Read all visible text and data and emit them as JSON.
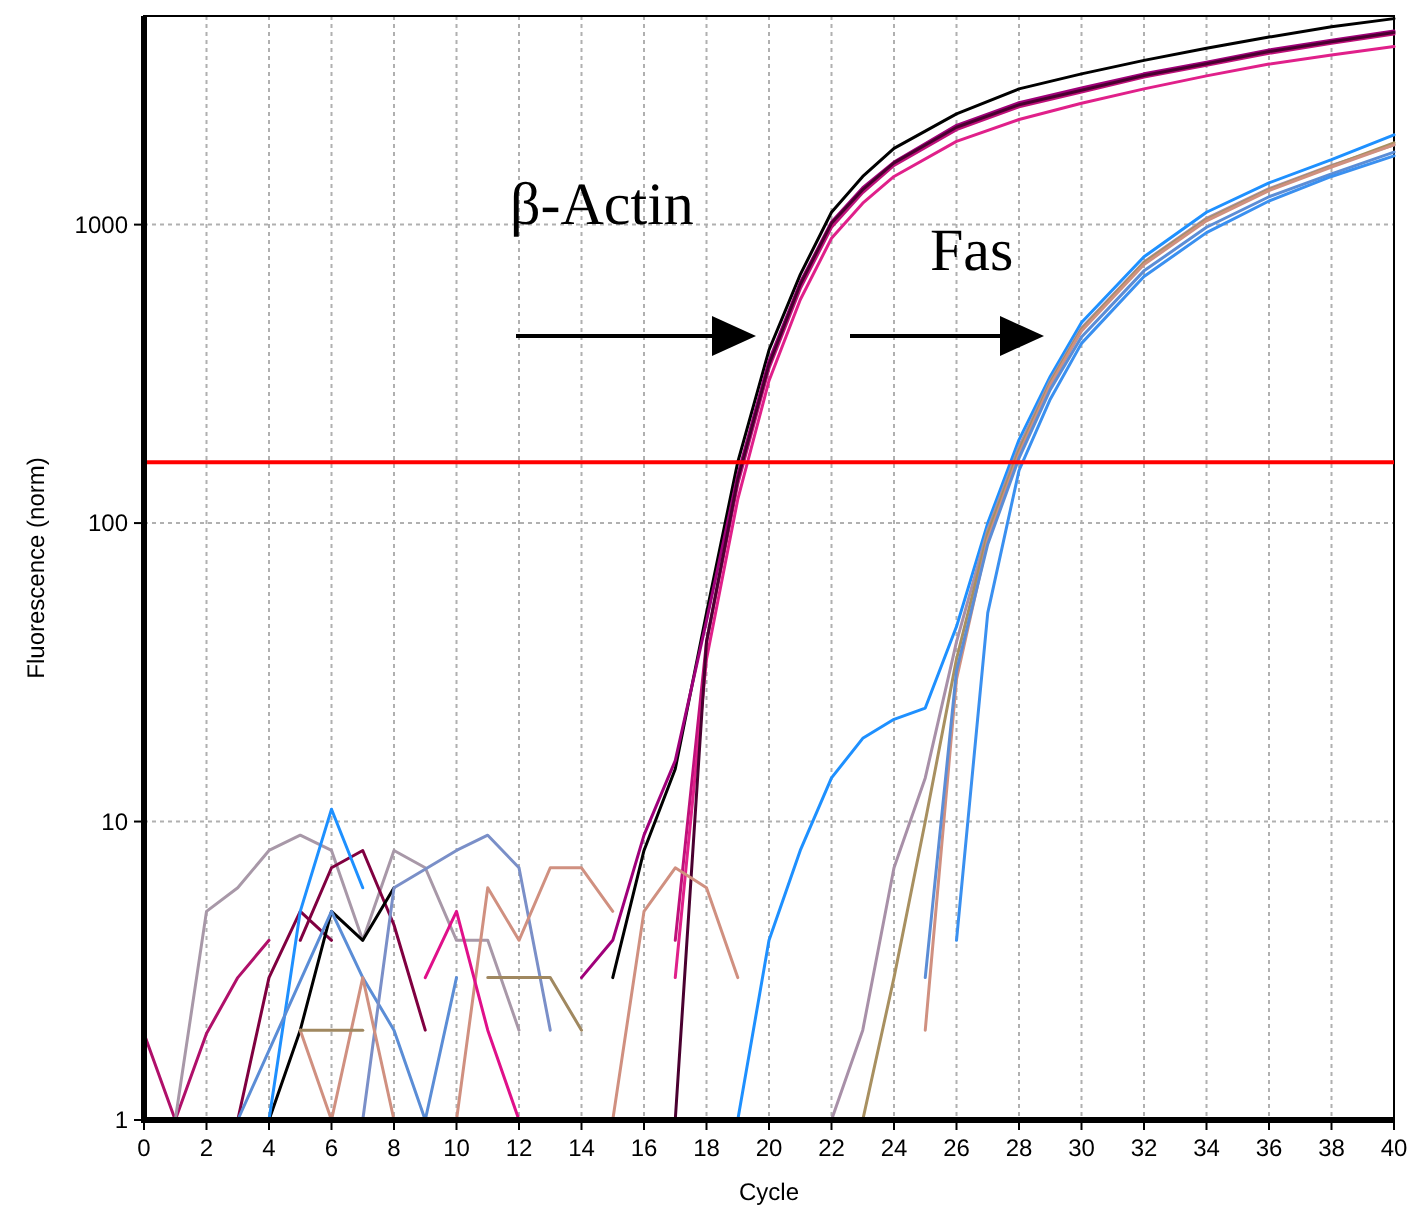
{
  "chart_data": {
    "type": "line",
    "xlabel": "Cycle",
    "ylabel": "Fluorescence (norm)",
    "annotations": [
      "β-Actin",
      "Fas"
    ],
    "log": "y",
    "grid": true,
    "marker": "none",
    "line_style": "solid",
    "xlim": [
      0,
      40
    ],
    "xticks": [
      0,
      2,
      4,
      6,
      8,
      10,
      12,
      14,
      16,
      18,
      20,
      22,
      24,
      26,
      28,
      30,
      32,
      34,
      36,
      38,
      40
    ],
    "ylim": [
      1,
      5000
    ],
    "yticks": [
      1,
      10,
      100,
      1000
    ],
    "ref_lines": [
      {
        "axis": "y",
        "value": 160,
        "color": "#ff0000"
      }
    ],
    "series": [
      {
        "color": "#000000",
        "x": [
          15,
          16,
          17,
          18,
          19,
          20,
          21,
          22,
          23,
          24,
          26,
          28,
          30,
          32,
          34,
          36,
          38,
          40
        ],
        "values": [
          3,
          8,
          15,
          50,
          160,
          380,
          680,
          1100,
          1450,
          1800,
          2350,
          2850,
          3200,
          3550,
          3900,
          4250,
          4600,
          4900
        ]
      },
      {
        "color": "#a0007a",
        "x": [
          14,
          15,
          16,
          17,
          18,
          19,
          20,
          21,
          22,
          23,
          24,
          26,
          28,
          30,
          32,
          34,
          36,
          38,
          40
        ],
        "values": [
          3,
          4,
          9,
          16,
          47,
          145,
          350,
          640,
          1020,
          1330,
          1620,
          2150,
          2560,
          2870,
          3200,
          3500,
          3850,
          4150,
          4450
        ]
      },
      {
        "color": "#c0107a",
        "x": [
          17,
          18,
          19,
          20,
          21,
          22,
          23,
          24,
          26,
          28,
          30,
          32,
          34,
          36,
          38,
          40
        ],
        "values": [
          4,
          40,
          135,
          330,
          610,
          980,
          1280,
          1580,
          2080,
          2480,
          2780,
          3120,
          3420,
          3750,
          4050,
          4350
        ]
      },
      {
        "color": "#e0208a",
        "x": [
          17,
          18,
          19,
          20,
          21,
          22,
          23,
          24,
          26,
          28,
          30,
          32,
          34,
          36,
          38,
          40
        ],
        "values": [
          3,
          35,
          120,
          300,
          560,
          900,
          1180,
          1450,
          1900,
          2250,
          2550,
          2850,
          3150,
          3450,
          3700,
          3950
        ]
      },
      {
        "color": "#4a0030",
        "x": [
          17,
          18,
          19,
          20,
          21,
          22,
          23,
          24,
          26,
          28,
          30,
          32,
          34,
          36,
          38,
          40
        ],
        "values": [
          1,
          40,
          140,
          340,
          630,
          1010,
          1310,
          1610,
          2120,
          2520,
          2820,
          3160,
          3460,
          3800,
          4100,
          4400
        ]
      },
      {
        "color": "#1e90ff",
        "x": [
          19,
          20,
          21,
          22,
          23,
          24,
          25,
          26,
          27,
          28,
          29,
          30,
          32,
          34,
          36,
          38,
          40
        ],
        "values": [
          1,
          4,
          8,
          14,
          19,
          22,
          24,
          45,
          100,
          190,
          310,
          470,
          780,
          1100,
          1380,
          1650,
          2000
        ]
      },
      {
        "color": "#a890a8",
        "x": [
          22,
          23,
          24,
          25,
          26,
          27,
          28,
          29,
          30,
          32,
          34,
          36,
          38,
          40
        ],
        "values": [
          1,
          2,
          7,
          14,
          40,
          95,
          180,
          300,
          450,
          750,
          1050,
          1320,
          1580,
          1850
        ]
      },
      {
        "color": "#a89060",
        "x": [
          23,
          24,
          25,
          26,
          27,
          28,
          29,
          30,
          32,
          34,
          36,
          38,
          40
        ],
        "values": [
          1,
          3,
          10,
          35,
          92,
          175,
          295,
          445,
          745,
          1040,
          1310,
          1570,
          1880
        ]
      },
      {
        "color": "#d09080",
        "x": [
          25,
          26,
          27,
          28,
          29,
          30,
          32,
          34,
          36,
          38,
          40
        ],
        "values": [
          2,
          30,
          88,
          170,
          290,
          440,
          735,
          1030,
          1300,
          1560,
          1850
        ]
      },
      {
        "color": "#5b8dd6",
        "x": [
          25,
          26,
          27,
          28,
          29,
          30,
          32,
          34,
          36,
          38,
          40
        ],
        "values": [
          3,
          32,
          85,
          165,
          280,
          420,
          700,
          980,
          1240,
          1480,
          1750
        ]
      },
      {
        "color": "#3a90f0",
        "x": [
          26,
          27,
          28,
          29,
          30,
          32,
          34,
          36,
          38,
          40
        ],
        "values": [
          4,
          50,
          150,
          260,
          400,
          670,
          940,
          1200,
          1450,
          1700
        ]
      },
      {
        "color": "#b0106a",
        "x": [
          0,
          1,
          2,
          3,
          4
        ],
        "values": [
          1.95,
          1,
          1.95,
          3,
          4
        ]
      },
      {
        "color": "#a898a8",
        "x": [
          1,
          2,
          3,
          4,
          5,
          6,
          7,
          8,
          9,
          10,
          11,
          12
        ],
        "values": [
          1,
          5,
          6,
          8,
          9,
          8,
          4,
          8,
          7,
          4,
          4,
          2
        ]
      },
      {
        "color": "#800040",
        "x": [
          3,
          4,
          5,
          6
        ],
        "values": [
          1,
          3,
          5,
          4
        ]
      },
      {
        "color": "#800040",
        "x": [
          5,
          6,
          7,
          8,
          9
        ],
        "values": [
          4,
          7,
          8,
          4.5,
          2
        ]
      },
      {
        "color": "#000000",
        "x": [
          4,
          5,
          6,
          7,
          8
        ],
        "values": [
          1,
          2,
          5,
          4,
          6
        ]
      },
      {
        "color": "#1e90ff",
        "x": [
          4,
          5,
          6,
          7
        ],
        "values": [
          1,
          5,
          11,
          6
        ]
      },
      {
        "color": "#5b8dd6",
        "x": [
          3,
          6,
          7,
          8,
          9,
          10
        ],
        "values": [
          1,
          5,
          3,
          2,
          1,
          3
        ]
      },
      {
        "color": "#7a8fc8",
        "x": [
          6,
          7,
          8,
          10,
          11,
          12,
          13
        ],
        "values": [
          1,
          1,
          6,
          8,
          9,
          7,
          2
        ]
      },
      {
        "color": "#d09080",
        "x": [
          5,
          6,
          7,
          8
        ],
        "values": [
          2,
          1,
          3,
          1
        ]
      },
      {
        "color": "#d09080",
        "x": [
          10,
          11,
          12,
          13,
          14,
          15
        ],
        "values": [
          1,
          6,
          4,
          7,
          7,
          5
        ]
      },
      {
        "color": "#d09080",
        "x": [
          15,
          16,
          17,
          18,
          19
        ],
        "values": [
          1,
          5,
          7,
          6,
          3
        ]
      },
      {
        "color": "#a08860",
        "x": [
          5,
          7
        ],
        "values": [
          2,
          2
        ]
      },
      {
        "color": "#a08860",
        "x": [
          11,
          13,
          14
        ],
        "values": [
          3,
          3,
          2
        ]
      },
      {
        "color": "#e0108a",
        "x": [
          9,
          10,
          11,
          12,
          14
        ],
        "values": [
          3,
          5,
          2,
          1,
          1
        ]
      }
    ]
  }
}
